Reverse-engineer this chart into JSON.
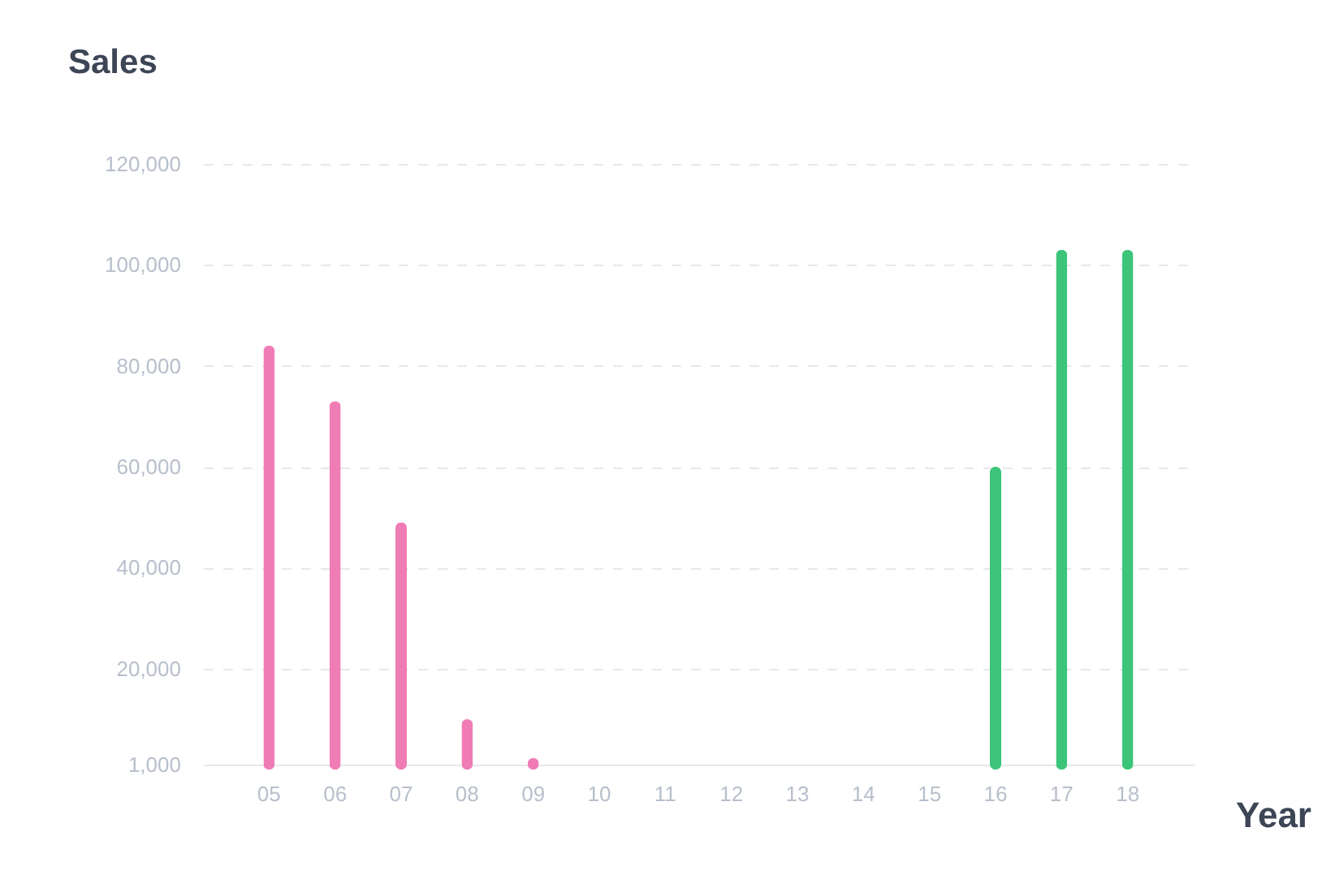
{
  "chart_data": {
    "type": "bar",
    "title": "Sales",
    "xlabel": "Year",
    "categories": [
      "05",
      "06",
      "07",
      "08",
      "09",
      "10",
      "11",
      "12",
      "13",
      "14",
      "15",
      "16",
      "17",
      "18"
    ],
    "values": [
      84000,
      73000,
      49000,
      10000,
      2300,
      null,
      null,
      null,
      null,
      null,
      null,
      60000,
      103000,
      103000
    ],
    "colors": [
      "#f07cb5",
      "#f07cb5",
      "#f07cb5",
      "#f07cb5",
      "#f07cb5",
      null,
      null,
      null,
      null,
      null,
      null,
      "#3cc47a",
      "#3cc47a",
      "#3cc47a"
    ],
    "ylim": [
      1000,
      120000
    ],
    "yticks": [
      {
        "value": 1000,
        "label": "1,000"
      },
      {
        "value": 20000,
        "label": "20,000"
      },
      {
        "value": 40000,
        "label": "40,000"
      },
      {
        "value": 60000,
        "label": "60,000"
      },
      {
        "value": 80000,
        "label": "80,000"
      },
      {
        "value": 100000,
        "label": "100,000"
      },
      {
        "value": 120000,
        "label": "120,000"
      }
    ],
    "grid": "y"
  }
}
